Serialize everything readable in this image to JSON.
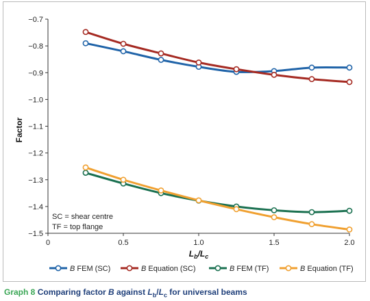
{
  "chart_data": {
    "type": "line",
    "xlabel_main": "L",
    "xlabel_sub_num": "b",
    "xlabel_sep": "/L",
    "xlabel_sub_den": "c",
    "ylabel": "Factor",
    "xlim": [
      0,
      2.0
    ],
    "ylim": [
      -1.5,
      -0.7
    ],
    "x_ticks": [
      "0",
      "0.5",
      "1.0",
      "1.5",
      "2.0"
    ],
    "x_tick_values": [
      0,
      0.5,
      1.0,
      1.5,
      2.0
    ],
    "y_ticks": [
      "-0.7",
      "-0.8",
      "-0.9",
      "-1.0",
      "-1.1",
      "-1.2",
      "-1.3",
      "-1.4",
      "-1.5"
    ],
    "y_tick_values": [
      -0.7,
      -0.8,
      -0.9,
      -1.0,
      -1.1,
      -1.2,
      -1.3,
      -1.4,
      -1.5
    ],
    "grid": false,
    "legend_position": "bottom",
    "x": [
      0.25,
      0.5,
      0.75,
      1.0,
      1.25,
      1.5,
      1.75,
      2.0
    ],
    "series": [
      {
        "name_prefix": "B",
        "name_suffix": " FEM (SC)",
        "color": "#1f63a8",
        "values": [
          -0.79,
          -0.82,
          -0.852,
          -0.878,
          -0.897,
          -0.894,
          -0.881,
          -0.881
        ]
      },
      {
        "name_prefix": "B",
        "name_suffix": " Equation (SC)",
        "color": "#a52a22",
        "values": [
          -0.748,
          -0.792,
          -0.828,
          -0.862,
          -0.887,
          -0.908,
          -0.924,
          -0.935
        ]
      },
      {
        "name_prefix": "B",
        "name_suffix": " FEM (TF)",
        "color": "#1a7050",
        "values": [
          -1.274,
          -1.314,
          -1.35,
          -1.378,
          -1.4,
          -1.414,
          -1.421,
          -1.416
        ]
      },
      {
        "name_prefix": "B",
        "name_suffix": " Equation (TF)",
        "color": "#f0a030",
        "values": [
          -1.254,
          -1.3,
          -1.34,
          -1.377,
          -1.41,
          -1.44,
          -1.466,
          -1.486
        ]
      }
    ],
    "annotations": [
      "SC = shear centre",
      "TF = top flange"
    ]
  },
  "caption": {
    "lead": "Graph 8",
    "text1": " Comparing factor ",
    "factor": "B",
    "text2": " against ",
    "ratio_l1": "L",
    "ratio_sub1": "b",
    "ratio_sep": "/",
    "ratio_l2": "L",
    "ratio_sub2": "c",
    "text3": " for universal beams"
  }
}
